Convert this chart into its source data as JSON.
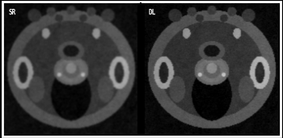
{
  "label_left": "SR",
  "label_right": "DL",
  "label_color": "#ffffff",
  "label_fontsize": 5.5,
  "border_color": "#ffffff",
  "center_divider_color": "#000000",
  "background_color": "#000000",
  "figsize": [
    3.5,
    1.71
  ],
  "dpi": 100,
  "border_thickness": 3
}
